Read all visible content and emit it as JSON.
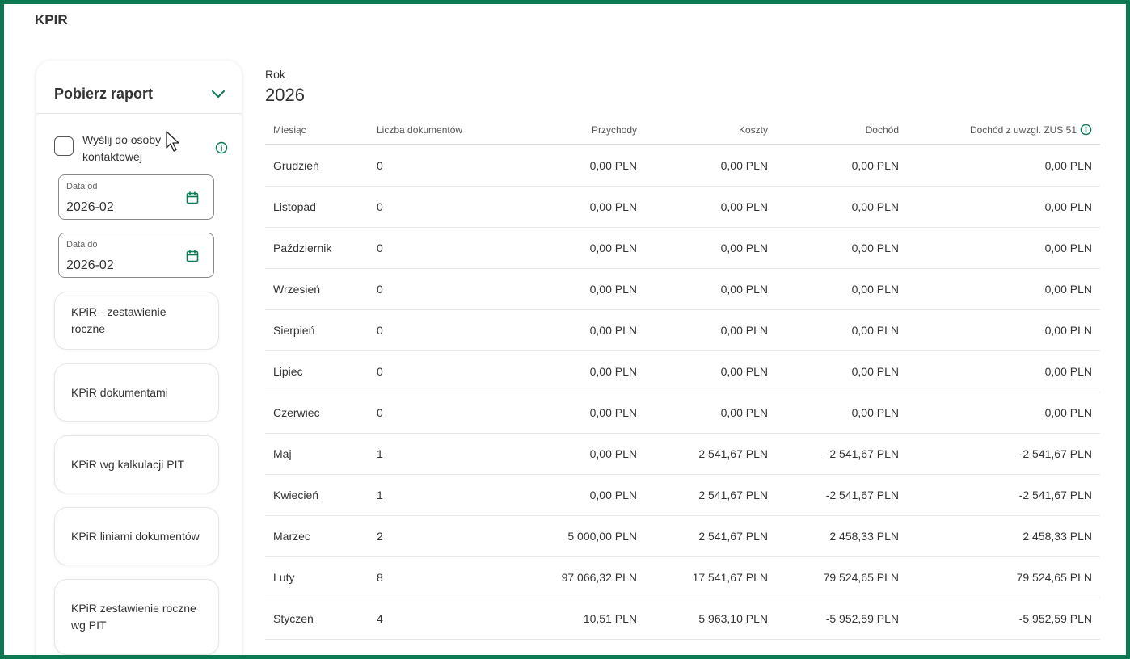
{
  "page": {
    "title": "KPIR"
  },
  "sidebar": {
    "header": "Pobierz raport",
    "send_contact_label": "Wyślij do osoby kontaktowej",
    "date_from": {
      "label": "Data od",
      "value": "2026-02"
    },
    "date_to": {
      "label": "Data do",
      "value": "2026-02"
    },
    "reports": [
      "KPiR - zestawienie roczne",
      "KPiR dokumentami",
      "KPiR wg kalkulacji PIT",
      "KPiR liniami dokumentów",
      "KPiR zestawienie roczne wg PIT"
    ]
  },
  "main": {
    "year_label": "Rok",
    "year_value": "2026",
    "columns": [
      "Miesiąc",
      "Liczba dokumentów",
      "Przychody",
      "Koszty",
      "Dochód",
      "Dochód z uwzgl. ZUS 51"
    ],
    "rows": [
      {
        "month": "Grudzień",
        "docs": "0",
        "income": "0,00 PLN",
        "costs": "0,00 PLN",
        "profit": "0,00 PLN",
        "profit_zus": "0,00 PLN"
      },
      {
        "month": "Listopad",
        "docs": "0",
        "income": "0,00 PLN",
        "costs": "0,00 PLN",
        "profit": "0,00 PLN",
        "profit_zus": "0,00 PLN"
      },
      {
        "month": "Październik",
        "docs": "0",
        "income": "0,00 PLN",
        "costs": "0,00 PLN",
        "profit": "0,00 PLN",
        "profit_zus": "0,00 PLN"
      },
      {
        "month": "Wrzesień",
        "docs": "0",
        "income": "0,00 PLN",
        "costs": "0,00 PLN",
        "profit": "0,00 PLN",
        "profit_zus": "0,00 PLN"
      },
      {
        "month": "Sierpień",
        "docs": "0",
        "income": "0,00 PLN",
        "costs": "0,00 PLN",
        "profit": "0,00 PLN",
        "profit_zus": "0,00 PLN"
      },
      {
        "month": "Lipiec",
        "docs": "0",
        "income": "0,00 PLN",
        "costs": "0,00 PLN",
        "profit": "0,00 PLN",
        "profit_zus": "0,00 PLN"
      },
      {
        "month": "Czerwiec",
        "docs": "0",
        "income": "0,00 PLN",
        "costs": "0,00 PLN",
        "profit": "0,00 PLN",
        "profit_zus": "0,00 PLN"
      },
      {
        "month": "Maj",
        "docs": "1",
        "income": "0,00 PLN",
        "costs": "2 541,67 PLN",
        "profit": "-2 541,67 PLN",
        "profit_zus": "-2 541,67 PLN"
      },
      {
        "month": "Kwiecień",
        "docs": "1",
        "income": "0,00 PLN",
        "costs": "2 541,67 PLN",
        "profit": "-2 541,67 PLN",
        "profit_zus": "-2 541,67 PLN"
      },
      {
        "month": "Marzec",
        "docs": "2",
        "income": "5 000,00 PLN",
        "costs": "2 541,67 PLN",
        "profit": "2 458,33 PLN",
        "profit_zus": "2 458,33 PLN"
      },
      {
        "month": "Luty",
        "docs": "8",
        "income": "97 066,32 PLN",
        "costs": "17 541,67 PLN",
        "profit": "79 524,65 PLN",
        "profit_zus": "79 524,65 PLN"
      },
      {
        "month": "Styczeń",
        "docs": "4",
        "income": "10,51 PLN",
        "costs": "5 963,10 PLN",
        "profit": "-5 952,59 PLN",
        "profit_zus": "-5 952,59 PLN"
      }
    ]
  },
  "colors": {
    "accent": "#0b7a53",
    "frame": "#0b7a53"
  },
  "icons": {
    "chevron": "chevron-down-icon",
    "info": "info-icon",
    "calendar": "calendar-icon",
    "cursor": "mouse-cursor-icon"
  }
}
